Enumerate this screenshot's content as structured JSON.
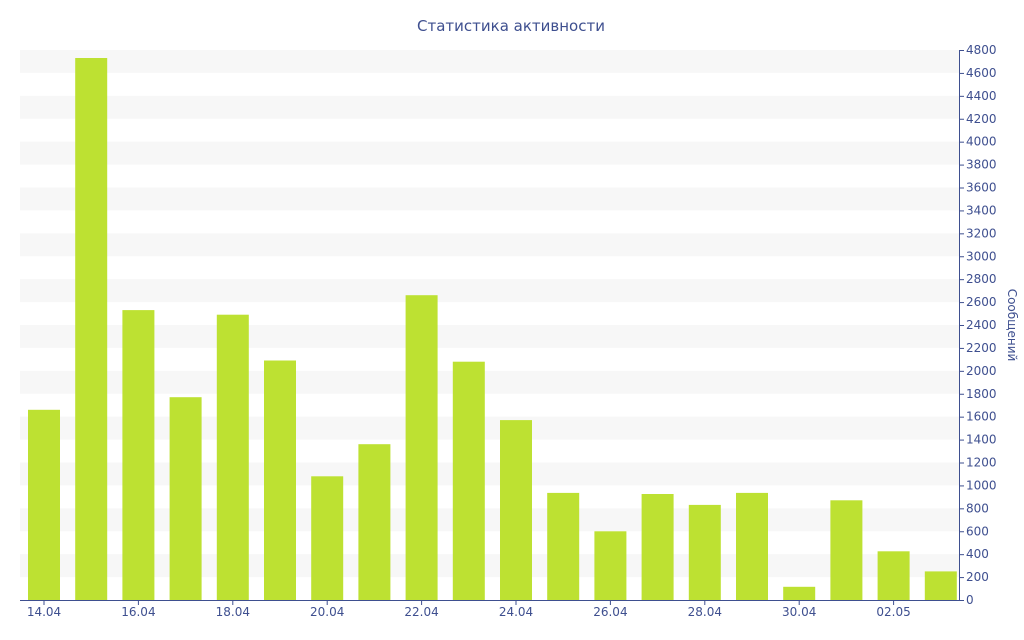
{
  "chart_data": {
    "type": "bar",
    "title": "Статистика активности",
    "xlabel": "",
    "ylabel": "Сообщений",
    "ylim": [
      0,
      4800
    ],
    "y_ticks": [
      "0",
      "200",
      "400",
      "600",
      "800",
      "1000",
      "1200",
      "1400",
      "1600",
      "1800",
      "2000",
      "2200",
      "2400",
      "2600",
      "2800",
      "3000",
      "3200",
      "3400",
      "3600",
      "3800",
      "4000",
      "4200",
      "4400",
      "4600",
      "4800"
    ],
    "y_axis_position": "right",
    "grid": "horizontal alternating bands",
    "categories": [
      "14.04",
      "15.04",
      "16.04",
      "17.04",
      "18.04",
      "19.04",
      "20.04",
      "21.04",
      "22.04",
      "23.04",
      "24.04",
      "25.04",
      "26.04",
      "27.04",
      "28.04",
      "29.04",
      "30.04",
      "01.05",
      "02.05",
      "03.05"
    ],
    "x_tick_labels": [
      "14.04",
      "16.04",
      "18.04",
      "20.04",
      "22.04",
      "24.04",
      "26.04",
      "28.04",
      "30.04",
      "02.05"
    ],
    "values": [
      1660,
      4730,
      2530,
      1770,
      2490,
      2090,
      1080,
      1360,
      2660,
      2080,
      1570,
      935,
      600,
      925,
      830,
      935,
      115,
      870,
      425,
      250
    ],
    "colors": {
      "bar": "#bde132",
      "band": "#f7f7f7",
      "axis": "#3e4f8f",
      "text": "#3e4f8f"
    }
  }
}
